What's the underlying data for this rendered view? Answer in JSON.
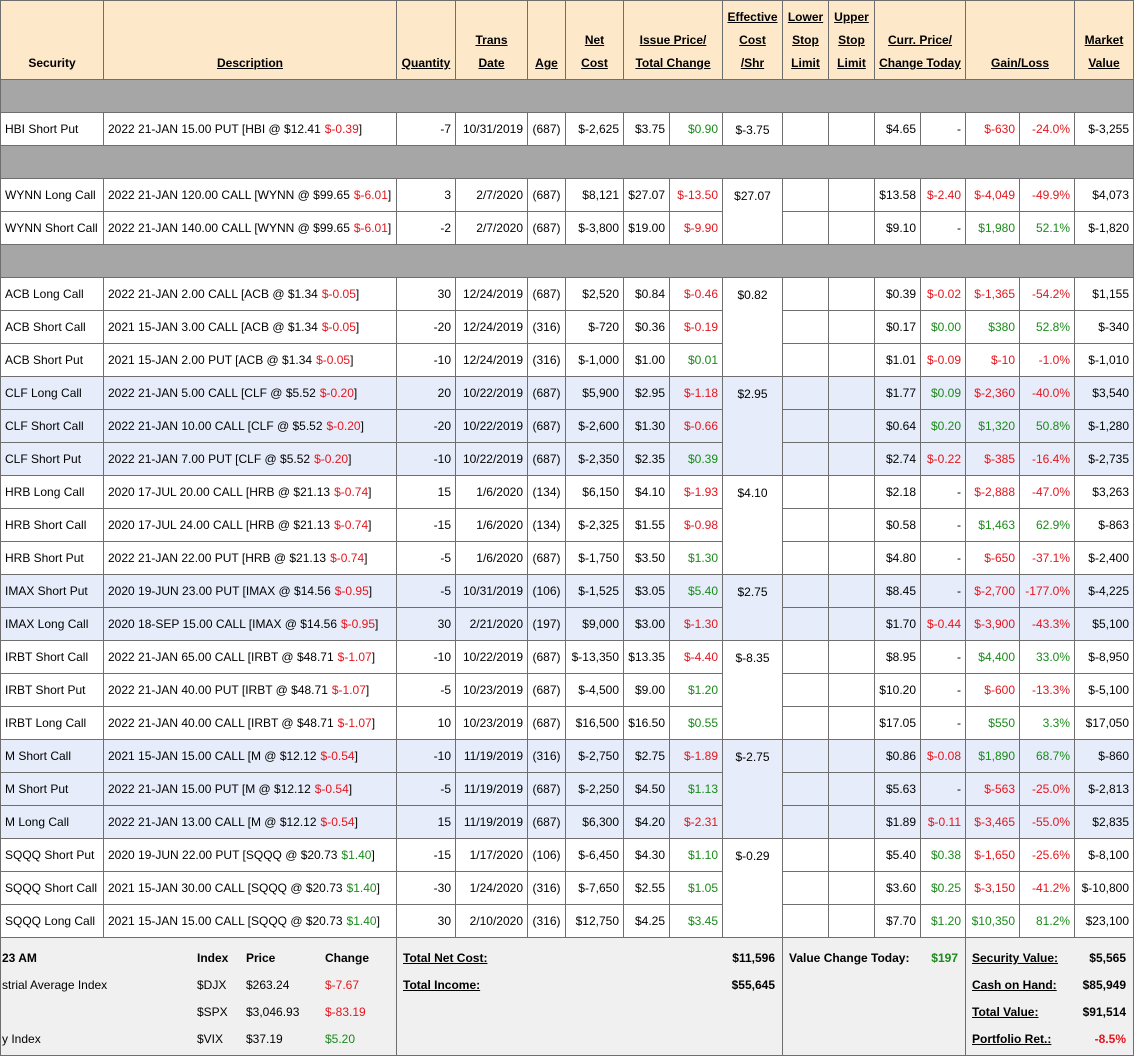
{
  "header": [
    [
      "Security"
    ],
    [
      "Description"
    ],
    [
      "Quantity"
    ],
    [
      "Trans",
      "Date"
    ],
    [
      "Age"
    ],
    [
      "Net",
      "Cost"
    ],
    [
      "Issue Price/",
      "Total Change"
    ],
    [
      "Effective",
      "Cost",
      "/Shr"
    ],
    [
      "Lower",
      "Stop",
      "Limit"
    ],
    [
      "Upper",
      "Stop",
      "Limit"
    ],
    [
      "Curr. Price/",
      "Change Today"
    ],
    [
      "Gain/Loss"
    ],
    [
      "Market",
      "Value"
    ]
  ],
  "sections": [
    {
      "groups": [
        {
          "effective_cost": "$-3.75",
          "rows": [
            [
              "HBI Short Put",
              [
                "2022 21-JAN 15.00 PUT [HBI @ $12.41",
                "$-0.39",
                "]"
              ],
              "-7",
              "10/31/2019",
              "(687)",
              "$-2,625",
              "$3.75",
              "$0.90",
              "$4.65",
              "-",
              "$-630",
              "-24.0%",
              "$-3,255"
            ]
          ]
        }
      ]
    },
    {
      "groups": [
        {
          "effective_cost": "$27.07",
          "rows": [
            [
              "WYNN Long Call",
              [
                "2022 21-JAN 120.00 CALL [WYNN @ $99.65",
                "$-6.01",
                "]"
              ],
              "3",
              "2/7/2020",
              "(687)",
              "$8,121",
              "$27.07",
              "$-13.50",
              "$13.58",
              "$-2.40",
              "$-4,049",
              "-49.9%",
              "$4,073"
            ],
            [
              "WYNN Short Call",
              [
                "2022 21-JAN 140.00 CALL [WYNN @ $99.65",
                "$-6.01",
                "]"
              ],
              "-2",
              "2/7/2020",
              "(687)",
              "$-3,800",
              "$19.00",
              "$-9.90",
              "$9.10",
              "-",
              "$1,980",
              "52.1%",
              "$-1,820"
            ]
          ]
        }
      ]
    },
    {
      "groups": [
        {
          "effective_cost": "$0.82",
          "rows": [
            [
              "ACB Long Call",
              [
                "2022 21-JAN 2.00 CALL [ACB @ $1.34",
                "$-0.05",
                "]"
              ],
              "30",
              "12/24/2019",
              "(687)",
              "$2,520",
              "$0.84",
              "$-0.46",
              "$0.39",
              "$-0.02",
              "$-1,365",
              "-54.2%",
              "$1,155"
            ],
            [
              "ACB Short Call",
              [
                "2021 15-JAN 3.00 CALL [ACB @ $1.34",
                "$-0.05",
                "]"
              ],
              "-20",
              "12/24/2019",
              "(316)",
              "$-720",
              "$0.36",
              "$-0.19",
              "$0.17",
              "$0.00",
              "$380",
              "52.8%",
              "$-340"
            ],
            [
              "ACB Short Put",
              [
                "2021 15-JAN 2.00 PUT [ACB @ $1.34",
                "$-0.05",
                "]"
              ],
              "-10",
              "12/24/2019",
              "(316)",
              "$-1,000",
              "$1.00",
              "$0.01",
              "$1.01",
              "$-0.09",
              "$-10",
              "-1.0%",
              "$-1,010"
            ]
          ]
        },
        {
          "effective_cost": "$2.95",
          "rows": [
            [
              "CLF Long Call",
              [
                "2022 21-JAN 5.00 CALL [CLF @ $5.52",
                "$-0.20",
                "]"
              ],
              "20",
              "10/22/2019",
              "(687)",
              "$5,900",
              "$2.95",
              "$-1.18",
              "$1.77",
              "$0.09",
              "$-2,360",
              "-40.0%",
              "$3,540"
            ],
            [
              "CLF Short Call",
              [
                "2022 21-JAN 10.00 CALL [CLF @ $5.52",
                "$-0.20",
                "]"
              ],
              "-20",
              "10/22/2019",
              "(687)",
              "$-2,600",
              "$1.30",
              "$-0.66",
              "$0.64",
              "$0.20",
              "$1,320",
              "50.8%",
              "$-1,280"
            ],
            [
              "CLF Short Put",
              [
                "2022 21-JAN 7.00 PUT [CLF @ $5.52",
                "$-0.20",
                "]"
              ],
              "-10",
              "10/22/2019",
              "(687)",
              "$-2,350",
              "$2.35",
              "$0.39",
              "$2.74",
              "$-0.22",
              "$-385",
              "-16.4%",
              "$-2,735"
            ]
          ]
        },
        {
          "effective_cost": "$4.10",
          "rows": [
            [
              "HRB Long Call",
              [
                "2020 17-JUL 20.00 CALL [HRB @ $21.13",
                "$-0.74",
                "]"
              ],
              "15",
              "1/6/2020",
              "(134)",
              "$6,150",
              "$4.10",
              "$-1.93",
              "$2.18",
              "-",
              "$-2,888",
              "-47.0%",
              "$3,263"
            ],
            [
              "HRB Short Call",
              [
                "2020 17-JUL 24.00 CALL [HRB @ $21.13",
                "$-0.74",
                "]"
              ],
              "-15",
              "1/6/2020",
              "(134)",
              "$-2,325",
              "$1.55",
              "$-0.98",
              "$0.58",
              "-",
              "$1,463",
              "62.9%",
              "$-863"
            ],
            [
              "HRB Short Put",
              [
                "2022 21-JAN 22.00 PUT [HRB @ $21.13",
                "$-0.74",
                "]"
              ],
              "-5",
              "1/6/2020",
              "(687)",
              "$-1,750",
              "$3.50",
              "$1.30",
              "$4.80",
              "-",
              "$-650",
              "-37.1%",
              "$-2,400"
            ]
          ]
        },
        {
          "effective_cost": "$2.75",
          "rows": [
            [
              "IMAX Short Put",
              [
                "2020 19-JUN 23.00 PUT [IMAX @ $14.56",
                "$-0.95",
                "]"
              ],
              "-5",
              "10/31/2019",
              "(106)",
              "$-1,525",
              "$3.05",
              "$5.40",
              "$8.45",
              "-",
              "$-2,700",
              "-177.0%",
              "$-4,225"
            ],
            [
              "IMAX Long Call",
              [
                "2020 18-SEP 15.00 CALL [IMAX @ $14.56",
                "$-0.95",
                "]"
              ],
              "30",
              "2/21/2020",
              "(197)",
              "$9,000",
              "$3.00",
              "$-1.30",
              "$1.70",
              "$-0.44",
              "$-3,900",
              "-43.3%",
              "$5,100"
            ]
          ]
        },
        {
          "effective_cost": "$-8.35",
          "rows": [
            [
              "IRBT Short Call",
              [
                "2022 21-JAN 65.00 CALL [IRBT @ $48.71",
                "$-1.07",
                "]"
              ],
              "-10",
              "10/22/2019",
              "(687)",
              "$-13,350",
              "$13.35",
              "$-4.40",
              "$8.95",
              "-",
              "$4,400",
              "33.0%",
              "$-8,950"
            ],
            [
              "IRBT Short Put",
              [
                "2022 21-JAN 40.00 PUT [IRBT @ $48.71",
                "$-1.07",
                "]"
              ],
              "-5",
              "10/23/2019",
              "(687)",
              "$-4,500",
              "$9.00",
              "$1.20",
              "$10.20",
              "-",
              "$-600",
              "-13.3%",
              "$-5,100"
            ],
            [
              "IRBT Long Call",
              [
                "2022 21-JAN 40.00 CALL [IRBT @ $48.71",
                "$-1.07",
                "]"
              ],
              "10",
              "10/23/2019",
              "(687)",
              "$16,500",
              "$16.50",
              "$0.55",
              "$17.05",
              "-",
              "$550",
              "3.3%",
              "$17,050"
            ]
          ]
        },
        {
          "effective_cost": "$-2.75",
          "rows": [
            [
              "M Short Call",
              [
                "2021 15-JAN 15.00 CALL [M @ $12.12",
                "$-0.54",
                "]"
              ],
              "-10",
              "11/19/2019",
              "(316)",
              "$-2,750",
              "$2.75",
              "$-1.89",
              "$0.86",
              "$-0.08",
              "$1,890",
              "68.7%",
              "$-860"
            ],
            [
              "M Short Put",
              [
                "2022 21-JAN 15.00 PUT [M @ $12.12",
                "$-0.54",
                "]"
              ],
              "-5",
              "11/19/2019",
              "(687)",
              "$-2,250",
              "$4.50",
              "$1.13",
              "$5.63",
              "-",
              "$-563",
              "-25.0%",
              "$-2,813"
            ],
            [
              "M Long Call",
              [
                "2022 21-JAN 13.00 CALL [M @ $12.12",
                "$-0.54",
                "]"
              ],
              "15",
              "11/19/2019",
              "(687)",
              "$6,300",
              "$4.20",
              "$-2.31",
              "$1.89",
              "$-0.11",
              "$-3,465",
              "-55.0%",
              "$2,835"
            ]
          ]
        },
        {
          "effective_cost": "$-0.29",
          "rows": [
            [
              "SQQQ Short Put",
              [
                "2020 19-JUN 22.00 PUT [SQQQ @ $20.73",
                "$1.40",
                "]"
              ],
              "-15",
              "1/17/2020",
              "(106)",
              "$-6,450",
              "$4.30",
              "$1.10",
              "$5.40",
              "$0.38",
              "$-1,650",
              "-25.6%",
              "$-8,100"
            ],
            [
              "SQQQ Short Call",
              [
                "2021 15-JAN 30.00 CALL [SQQQ @ $20.73",
                "$1.40",
                "]"
              ],
              "-30",
              "1/24/2020",
              "(316)",
              "$-7,650",
              "$2.55",
              "$1.05",
              "$3.60",
              "$0.25",
              "$-3,150",
              "-41.2%",
              "$-10,800"
            ],
            [
              "SQQQ Long Call",
              [
                "2021 15-JAN 15.00 CALL [SQQQ @ $20.73",
                "$1.40",
                "]"
              ],
              "30",
              "2/10/2020",
              "(316)",
              "$12,750",
              "$4.25",
              "$3.45",
              "$7.70",
              "$1.20",
              "$10,350",
              "81.2%",
              "$23,100"
            ]
          ]
        }
      ]
    }
  ],
  "footer": {
    "market": {
      "time": "23 AM",
      "headers": [
        "Index",
        "Price",
        "Change"
      ],
      "rows": [
        {
          "name": "strial Average Index",
          "index": "$DJX",
          "price": "$263.24",
          "change": "$-7.67"
        },
        {
          "index": "$SPX",
          "price": "$3,046.93",
          "change": "$-83.19"
        },
        {
          "name": "y Index",
          "index": "$VIX",
          "price": "$37.19",
          "change": "$5.20"
        }
      ]
    },
    "totals": [
      [
        "Total Net Cost:",
        "$11,596"
      ],
      [
        "Total Income:",
        "$55,645"
      ]
    ],
    "value_change": [
      "Value Change Today:",
      "$197"
    ],
    "summary": [
      [
        "Security Value:",
        "$5,565"
      ],
      [
        "Cash on Hand:",
        "$85,949"
      ],
      [
        "Total Value:",
        "$91,514"
      ],
      [
        "Portfolio Ret.:",
        "-8.5%"
      ]
    ]
  }
}
